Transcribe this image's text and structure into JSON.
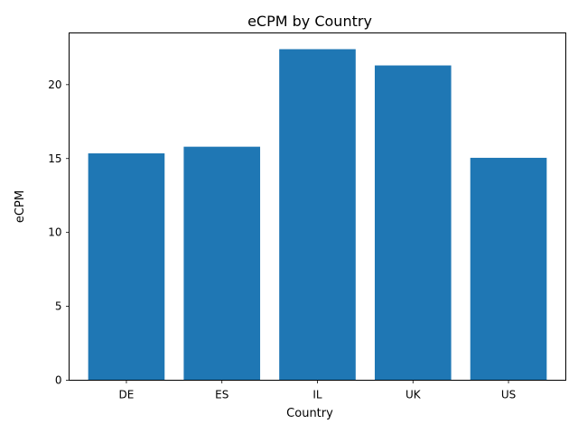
{
  "chart_data": {
    "type": "bar",
    "title": "eCPM by Country",
    "xlabel": "Country",
    "ylabel": "eCPM",
    "categories": [
      "DE",
      "ES",
      "IL",
      "UK",
      "US"
    ],
    "values": [
      15.35,
      15.8,
      22.4,
      21.3,
      15.05
    ],
    "ylim": [
      0,
      23.5
    ],
    "yticks": [
      "0",
      "5",
      "10",
      "15",
      "20"
    ],
    "grid": false,
    "legend": "none",
    "bar_color": "#1f77b4"
  }
}
